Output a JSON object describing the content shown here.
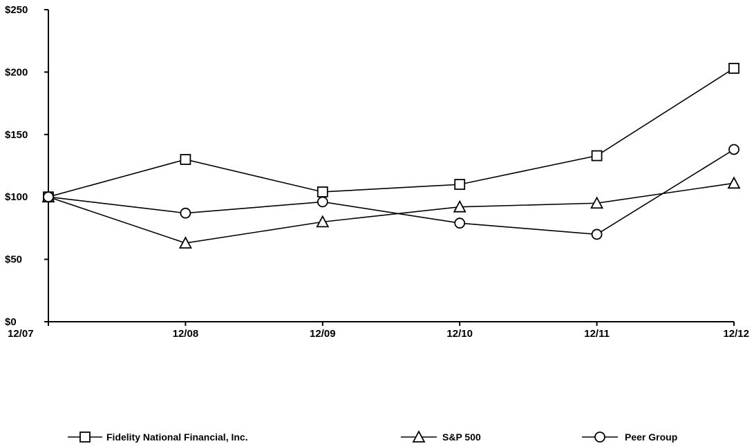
{
  "chart_data": {
    "type": "line",
    "title": "",
    "xlabel": "",
    "ylabel": "",
    "categories": [
      "12/07",
      "12/08",
      "12/09",
      "12/10",
      "12/11",
      "12/12"
    ],
    "ylim": [
      0,
      250
    ],
    "yticks": [
      0,
      50,
      100,
      150,
      200,
      250
    ],
    "ytick_labels": [
      "$0",
      "$50",
      "$100",
      "$150",
      "$200",
      "$250"
    ],
    "grid": false,
    "legend_position": "bottom",
    "series": [
      {
        "name": "Fidelity National Financial, Inc.",
        "marker": "square",
        "values": [
          100,
          130,
          104,
          110,
          133,
          203
        ]
      },
      {
        "name": "S&P 500",
        "marker": "triangle",
        "values": [
          100,
          63,
          80,
          92,
          95,
          111
        ]
      },
      {
        "name": "Peer Group",
        "marker": "circle",
        "values": [
          100,
          87,
          96,
          79,
          70,
          138
        ]
      }
    ]
  }
}
